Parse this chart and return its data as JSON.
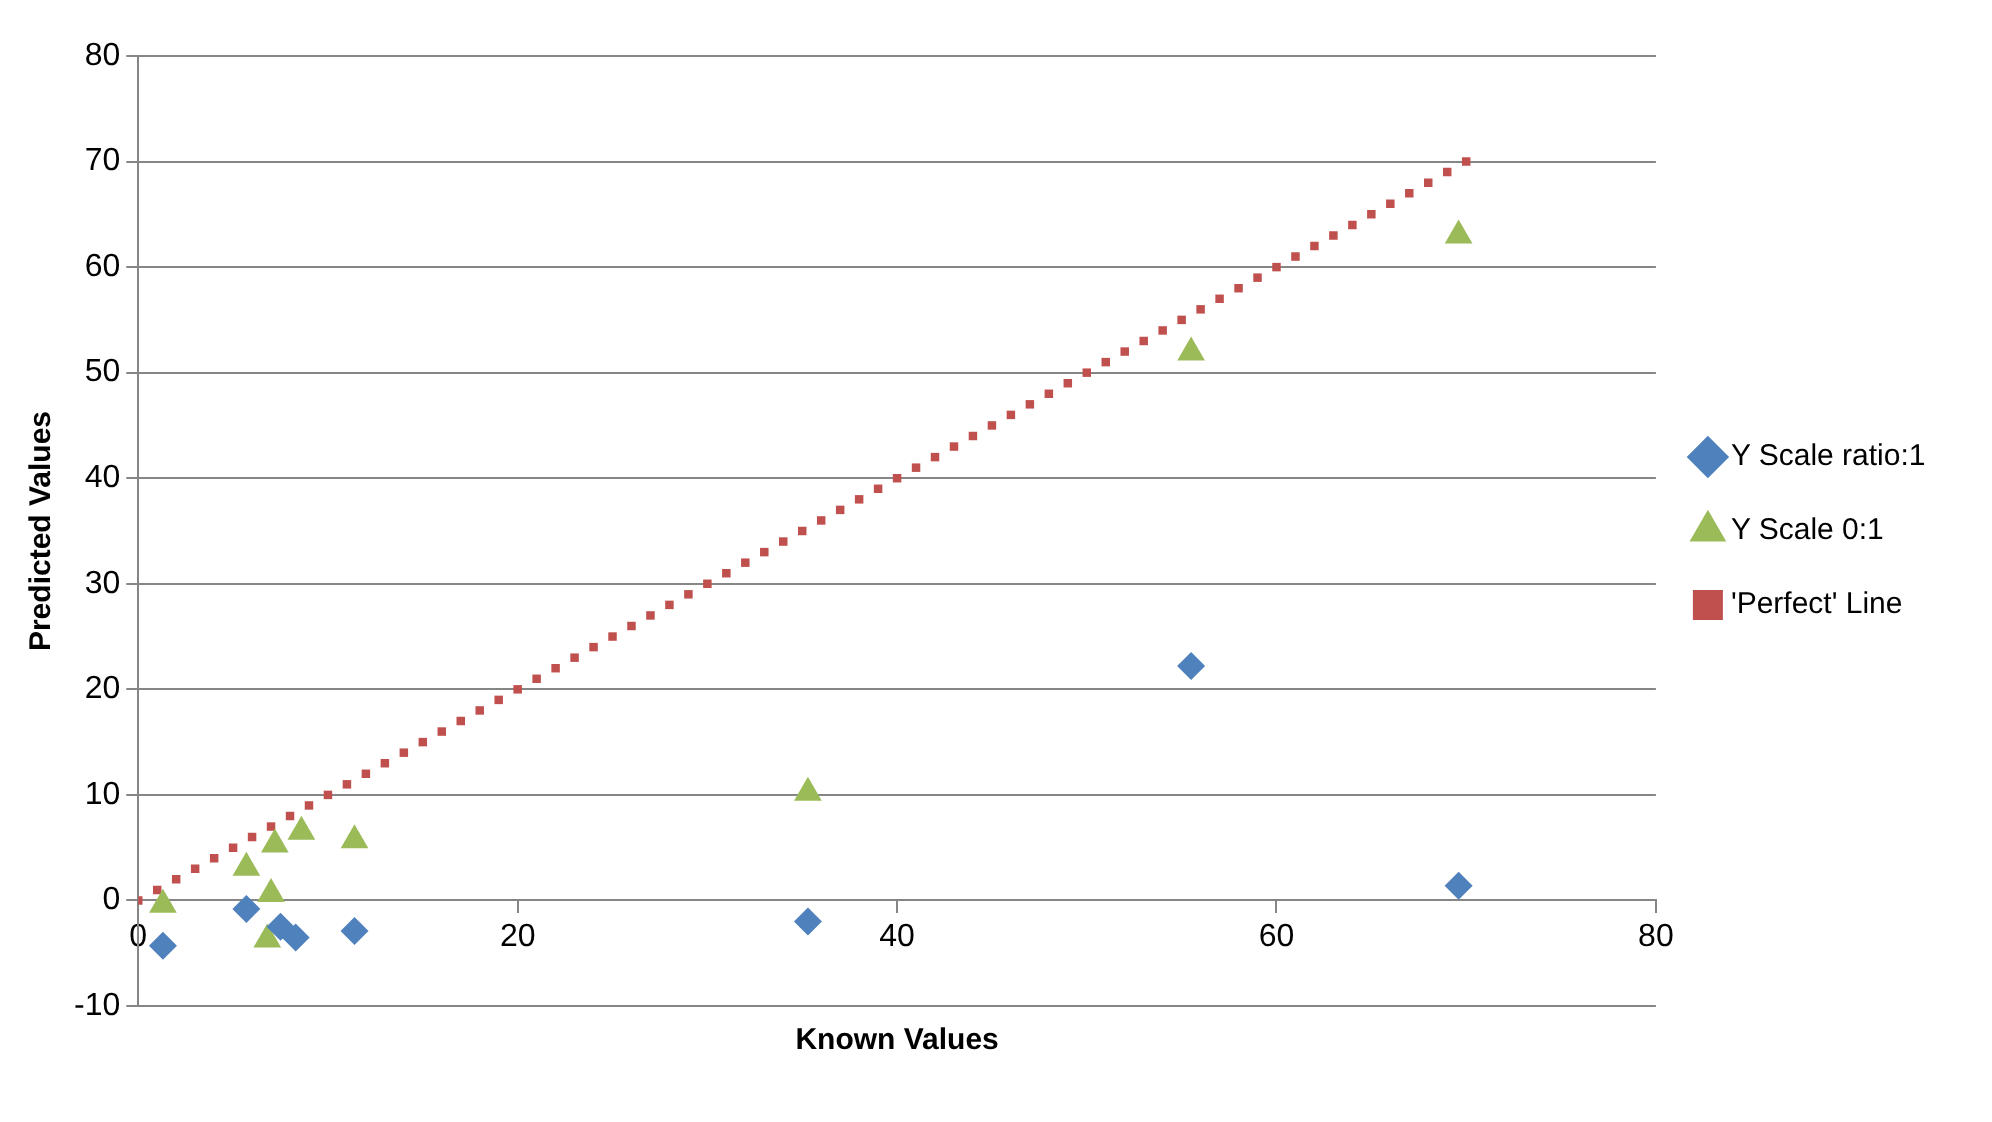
{
  "chart_data": {
    "type": "scatter",
    "xlabel": "Known Values",
    "ylabel": "Predicted Values",
    "xlim": [
      0,
      80
    ],
    "xticks": [
      0,
      20,
      40,
      60,
      80
    ],
    "ylim": [
      -10,
      80
    ],
    "yticks": [
      -10,
      0,
      10,
      20,
      30,
      40,
      50,
      60,
      70,
      80
    ],
    "grid": "y",
    "legend": "right",
    "series": [
      {
        "name": "Y Scale ratio:1",
        "color": "#4f81bd",
        "marker": "diamond",
        "x": [
          1.3,
          5.7,
          7.5,
          8.3,
          11.4,
          35.3,
          55.5,
          69.6
        ],
        "values": [
          -4.3,
          -0.8,
          -2.5,
          -3.5,
          -2.9,
          -2.0,
          22.2,
          1.4
        ]
      },
      {
        "name": "Y Scale 0:1",
        "color": "#9bbb59",
        "marker": "triangle",
        "x": [
          1.3,
          5.7,
          7.2,
          8.6,
          11.4,
          7.0,
          6.8,
          35.3,
          55.5,
          69.6
        ],
        "values": [
          -0.4,
          3.1,
          5.3,
          6.5,
          5.7,
          0.6,
          -3.7,
          10.2,
          51.9,
          63.0
        ]
      },
      {
        "name": "'Perfect' Line",
        "color": "#c0504d",
        "marker": "square",
        "x": [
          0,
          1,
          2,
          3,
          4,
          5,
          6,
          7,
          8,
          9,
          10,
          11,
          12,
          13,
          14,
          15,
          16,
          17,
          18,
          19,
          20,
          21,
          22,
          23,
          24,
          25,
          26,
          27,
          28,
          29,
          30,
          31,
          32,
          33,
          34,
          35,
          36,
          37,
          38,
          39,
          40,
          41,
          42,
          43,
          44,
          45,
          46,
          47,
          48,
          49,
          50,
          51,
          52,
          53,
          54,
          55,
          56,
          57,
          58,
          59,
          60,
          61,
          62,
          63,
          64,
          65,
          66,
          67,
          68,
          69,
          70
        ],
        "values": [
          0,
          1,
          2,
          3,
          4,
          5,
          6,
          7,
          8,
          9,
          10,
          11,
          12,
          13,
          14,
          15,
          16,
          17,
          18,
          19,
          20,
          21,
          22,
          23,
          24,
          25,
          26,
          27,
          28,
          29,
          30,
          31,
          32,
          33,
          34,
          35,
          36,
          37,
          38,
          39,
          40,
          41,
          42,
          43,
          44,
          45,
          46,
          47,
          48,
          49,
          50,
          51,
          52,
          53,
          54,
          55,
          56,
          57,
          58,
          59,
          60,
          61,
          62,
          63,
          64,
          65,
          66,
          67,
          68,
          69,
          70
        ]
      }
    ]
  }
}
